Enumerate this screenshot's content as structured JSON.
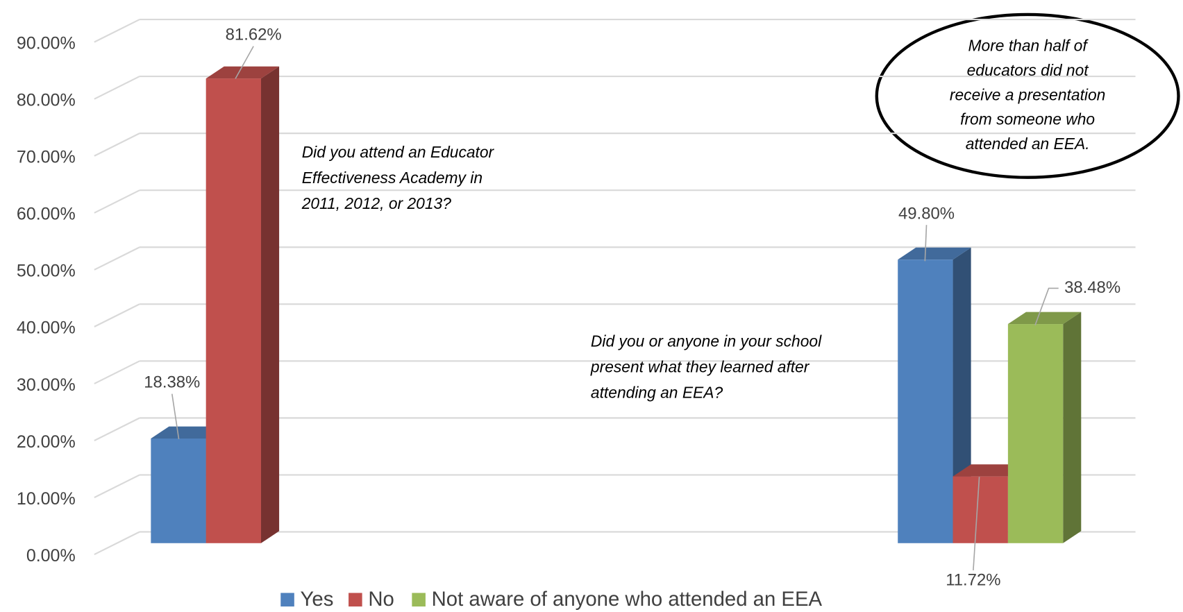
{
  "chart_data": {
    "type": "bar3d",
    "categories": [
      null,
      null
    ],
    "series": [
      {
        "name": "Yes",
        "color": "#4f81bd",
        "values": [
          18.38,
          49.8
        ],
        "value_labels": [
          "18.38%",
          "49.80%"
        ]
      },
      {
        "name": "No",
        "color": "#c0504d",
        "values": [
          81.62,
          11.72
        ],
        "value_labels": [
          "81.62%",
          "11.72%"
        ]
      },
      {
        "name": "Not aware of anyone who attended an EEA",
        "color": "#9bbb59",
        "values": [
          null,
          38.48
        ],
        "value_labels": [
          null,
          "38.48%"
        ]
      }
    ],
    "ylim": [
      0,
      90
    ],
    "yticks": [
      {
        "value": 0,
        "label": "0.00%"
      },
      {
        "value": 10,
        "label": "10.00%"
      },
      {
        "value": 20,
        "label": "20.00%"
      },
      {
        "value": 30,
        "label": "30.00%"
      },
      {
        "value": 40,
        "label": "40.00%"
      },
      {
        "value": 50,
        "label": "50.00%"
      },
      {
        "value": 60,
        "label": "60.00%"
      },
      {
        "value": 70,
        "label": "70.00%"
      },
      {
        "value": 80,
        "label": "80.00%"
      },
      {
        "value": 90,
        "label": "90.00%"
      }
    ],
    "grid": true,
    "legend": "bottom",
    "annotations": [
      [
        "Did you attend an Educator",
        "Effectiveness Academy in",
        "2011, 2012, or 2013?"
      ],
      [
        "Did you or anyone in your school",
        "present what they learned after",
        "attending an EEA?"
      ],
      [
        "More than half of",
        "educators did not",
        "receive a presentation",
        "from someone who",
        "attended an EEA."
      ]
    ]
  }
}
